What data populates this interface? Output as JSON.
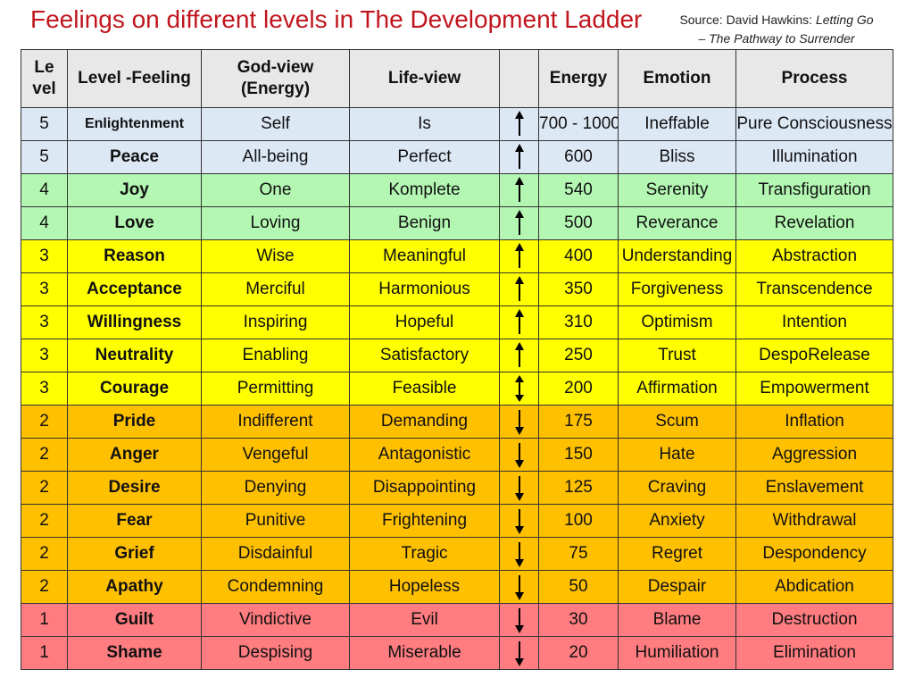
{
  "title": "Feelings on different levels in The Development Ladder",
  "source": {
    "prefix": "Source: David Hawkins: ",
    "book": "Letting Go",
    "subtitle": "– The Pathway to Surrender"
  },
  "headers": {
    "level_line1": "Le",
    "level_line2": "vel",
    "feeling": "Level -Feeling",
    "godview_line1": "God-view",
    "godview_line2": "(Energy)",
    "lifeview": "Life-view",
    "arrow": "",
    "energy": "Energy",
    "emotion": "Emotion",
    "process": "Process"
  },
  "colors": {
    "blue": "#dde8f5",
    "green": "#b3f7b3",
    "yellow": "#ffff00",
    "orange": "#ffc000",
    "red": "#ff7c80"
  },
  "rows": [
    {
      "level": "5",
      "feeling": "Enlightenment",
      "godview": "Self",
      "lifeview": "Is",
      "arrow": "up",
      "energy": "700 - 1000",
      "emotion": "Ineffable",
      "process": "Pure Consciousness",
      "band": "blue"
    },
    {
      "level": "5",
      "feeling": "Peace",
      "godview": "All-being",
      "lifeview": "Perfect",
      "arrow": "up",
      "energy": "600",
      "emotion": "Bliss",
      "process": "Illumination",
      "band": "blue"
    },
    {
      "level": "4",
      "feeling": "Joy",
      "godview": "One",
      "lifeview": "Komplete",
      "arrow": "up",
      "energy": "540",
      "emotion": "Serenity",
      "process": "Transfiguration",
      "band": "green"
    },
    {
      "level": "4",
      "feeling": "Love",
      "godview": "Loving",
      "lifeview": "Benign",
      "arrow": "up",
      "energy": "500",
      "emotion": "Reverance",
      "process": "Revelation",
      "band": "green"
    },
    {
      "level": "3",
      "feeling": "Reason",
      "godview": "Wise",
      "lifeview": "Meaningful",
      "arrow": "up",
      "energy": "400",
      "emotion": "Understanding",
      "process": "Abstraction",
      "band": "yellow"
    },
    {
      "level": "3",
      "feeling": "Acceptance",
      "godview": "Merciful",
      "lifeview": "Harmonious",
      "arrow": "up",
      "energy": "350",
      "emotion": "Forgiveness",
      "process": "Transcendence",
      "band": "yellow"
    },
    {
      "level": "3",
      "feeling": "Willingness",
      "godview": "Inspiring",
      "lifeview": "Hopeful",
      "arrow": "up",
      "energy": "310",
      "emotion": "Optimism",
      "process": "Intention",
      "band": "yellow"
    },
    {
      "level": "3",
      "feeling": "Neutrality",
      "godview": "Enabling",
      "lifeview": "Satisfactory",
      "arrow": "up",
      "energy": "250",
      "emotion": "Trust",
      "process": "DespoRelease",
      "band": "yellow"
    },
    {
      "level": "3",
      "feeling": "Courage",
      "godview": "Permitting",
      "lifeview": "Feasible",
      "arrow": "both",
      "energy": "200",
      "emotion": "Affirmation",
      "process": "Empowerment",
      "band": "yellow"
    },
    {
      "level": "2",
      "feeling": "Pride",
      "godview": "Indifferent",
      "lifeview": "Demanding",
      "arrow": "down",
      "energy": "175",
      "emotion": "Scum",
      "process": "Inflation",
      "band": "orange"
    },
    {
      "level": "2",
      "feeling": "Anger",
      "godview": "Vengeful",
      "lifeview": "Antagonistic",
      "arrow": "down",
      "energy": "150",
      "emotion": "Hate",
      "process": "Aggression",
      "band": "orange"
    },
    {
      "level": "2",
      "feeling": "Desire",
      "godview": "Denying",
      "lifeview": "Disappointing",
      "arrow": "down",
      "energy": "125",
      "emotion": "Craving",
      "process": "Enslavement",
      "band": "orange"
    },
    {
      "level": "2",
      "feeling": "Fear",
      "godview": "Punitive",
      "lifeview": "Frightening",
      "arrow": "down",
      "energy": "100",
      "emotion": "Anxiety",
      "process": "Withdrawal",
      "band": "orange"
    },
    {
      "level": "2",
      "feeling": "Grief",
      "godview": "Disdainful",
      "lifeview": "Tragic",
      "arrow": "down",
      "energy": "75",
      "emotion": "Regret",
      "process": "Despondency",
      "band": "orange"
    },
    {
      "level": "2",
      "feeling": "Apathy",
      "godview": "Condemning",
      "lifeview": "Hopeless",
      "arrow": "down",
      "energy": "50",
      "emotion": "Despair",
      "process": "Abdication",
      "band": "orange"
    },
    {
      "level": "1",
      "feeling": "Guilt",
      "godview": "Vindictive",
      "lifeview": "Evil",
      "arrow": "down",
      "energy": "30",
      "emotion": "Blame",
      "process": "Destruction",
      "band": "red"
    },
    {
      "level": "1",
      "feeling": "Shame",
      "godview": "Despising",
      "lifeview": "Miserable",
      "arrow": "down",
      "energy": "20",
      "emotion": "Humiliation",
      "process": "Elimination",
      "band": "red"
    }
  ]
}
